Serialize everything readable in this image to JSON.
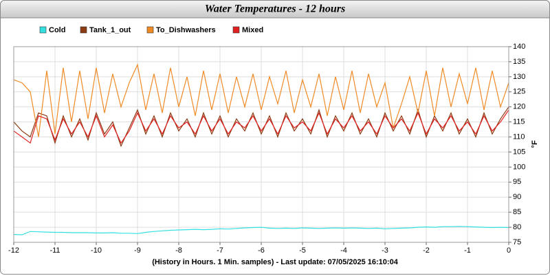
{
  "chart_data": {
    "type": "line",
    "title": "Water Temperatures - 12 hours",
    "x_label": "(History in Hours. 1 Min. samples) - Last update: 07/05/2025 16:10:04",
    "y_label": "°F",
    "x": [
      -12,
      -11.8,
      -11.6,
      -11.4,
      -11.2,
      -11,
      -10.8,
      -10.6,
      -10.4,
      -10.2,
      -10,
      -9.8,
      -9.6,
      -9.4,
      -9.2,
      -9,
      -8.8,
      -8.6,
      -8.4,
      -8.2,
      -8,
      -7.8,
      -7.6,
      -7.4,
      -7.2,
      -7,
      -6.8,
      -6.6,
      -6.4,
      -6.2,
      -6,
      -5.8,
      -5.6,
      -5.4,
      -5.2,
      -5,
      -4.8,
      -4.6,
      -4.4,
      -4.2,
      -4,
      -3.8,
      -3.6,
      -3.4,
      -3.2,
      -3,
      -2.8,
      -2.6,
      -2.4,
      -2.2,
      -2,
      -1.8,
      -1.6,
      -1.4,
      -1.2,
      -1,
      -0.8,
      -0.6,
      -0.4,
      -0.2,
      0
    ],
    "series": [
      {
        "name": "Cold",
        "color": "#33e0e0",
        "values": [
          77.6,
          77.5,
          78.6,
          78.5,
          78.4,
          78.3,
          78.3,
          78.2,
          78.2,
          78.2,
          78.1,
          78.1,
          78.2,
          78.0,
          78.0,
          77.9,
          78.3,
          78.6,
          78.8,
          79.0,
          79.1,
          79.2,
          79.3,
          79.2,
          79.3,
          79.5,
          79.4,
          79.6,
          79.8,
          79.9,
          80.0,
          79.7,
          79.6,
          79.7,
          79.6,
          79.8,
          79.7,
          79.6,
          79.7,
          79.8,
          79.7,
          79.8,
          79.7,
          79.6,
          79.7,
          79.5,
          79.6,
          79.7,
          79.8,
          80.0,
          80.1,
          80.0,
          80.2,
          80.2,
          80.3,
          80.2,
          80.1,
          80.0,
          79.9,
          80.0,
          79.9
        ]
      },
      {
        "name": "Tank_1_out",
        "color": "#8b3a12",
        "values": [
          115,
          112,
          110,
          118,
          117,
          108,
          117,
          110,
          116,
          109,
          118,
          111,
          115,
          107,
          113,
          119,
          111,
          117,
          110,
          118,
          112,
          116,
          110,
          118,
          111,
          117,
          110,
          116,
          112,
          118,
          111,
          117,
          110,
          118,
          112,
          116,
          111,
          119,
          110,
          117,
          112,
          118,
          111,
          116,
          110,
          118,
          112,
          117,
          111,
          119,
          110,
          117,
          112,
          118,
          111,
          116,
          110,
          118,
          111,
          116,
          120
        ]
      },
      {
        "name": "To_Dishwashers",
        "color": "#f08a24",
        "values": [
          129,
          128,
          125,
          110,
          132,
          111,
          133,
          115,
          132,
          116,
          133,
          118,
          131,
          120,
          128,
          134,
          119,
          131,
          118,
          133,
          120,
          130,
          117,
          132,
          119,
          131,
          118,
          130,
          120,
          131,
          119,
          130,
          121,
          132,
          118,
          129,
          120,
          131,
          117,
          130,
          119,
          132,
          118,
          131,
          120,
          128,
          113,
          121,
          130,
          118,
          132,
          117,
          133,
          120,
          131,
          121,
          133,
          119,
          132,
          120,
          128
        ]
      },
      {
        "name": "Mixed",
        "color": "#e02020",
        "values": [
          112,
          110,
          108,
          117,
          116,
          109,
          116,
          111,
          115,
          110,
          117,
          110,
          114,
          108,
          112,
          118,
          112,
          116,
          111,
          117,
          113,
          115,
          111,
          117,
          112,
          116,
          111,
          115,
          113,
          117,
          112,
          116,
          111,
          117,
          113,
          115,
          112,
          118,
          111,
          116,
          113,
          117,
          112,
          115,
          111,
          117,
          113,
          116,
          112,
          118,
          111,
          116,
          113,
          117,
          112,
          115,
          111,
          117,
          112,
          115,
          119
        ]
      }
    ],
    "xlim": [
      -12,
      0
    ],
    "xticks": [
      -12,
      -11,
      -10,
      -9,
      -8,
      -7,
      -6,
      -5,
      -4,
      -3,
      -2,
      -1,
      0
    ],
    "ylim": [
      75,
      140
    ],
    "yticks": [
      75,
      80,
      85,
      90,
      95,
      100,
      105,
      110,
      115,
      120,
      125,
      130,
      135,
      140
    ],
    "grid": true
  }
}
